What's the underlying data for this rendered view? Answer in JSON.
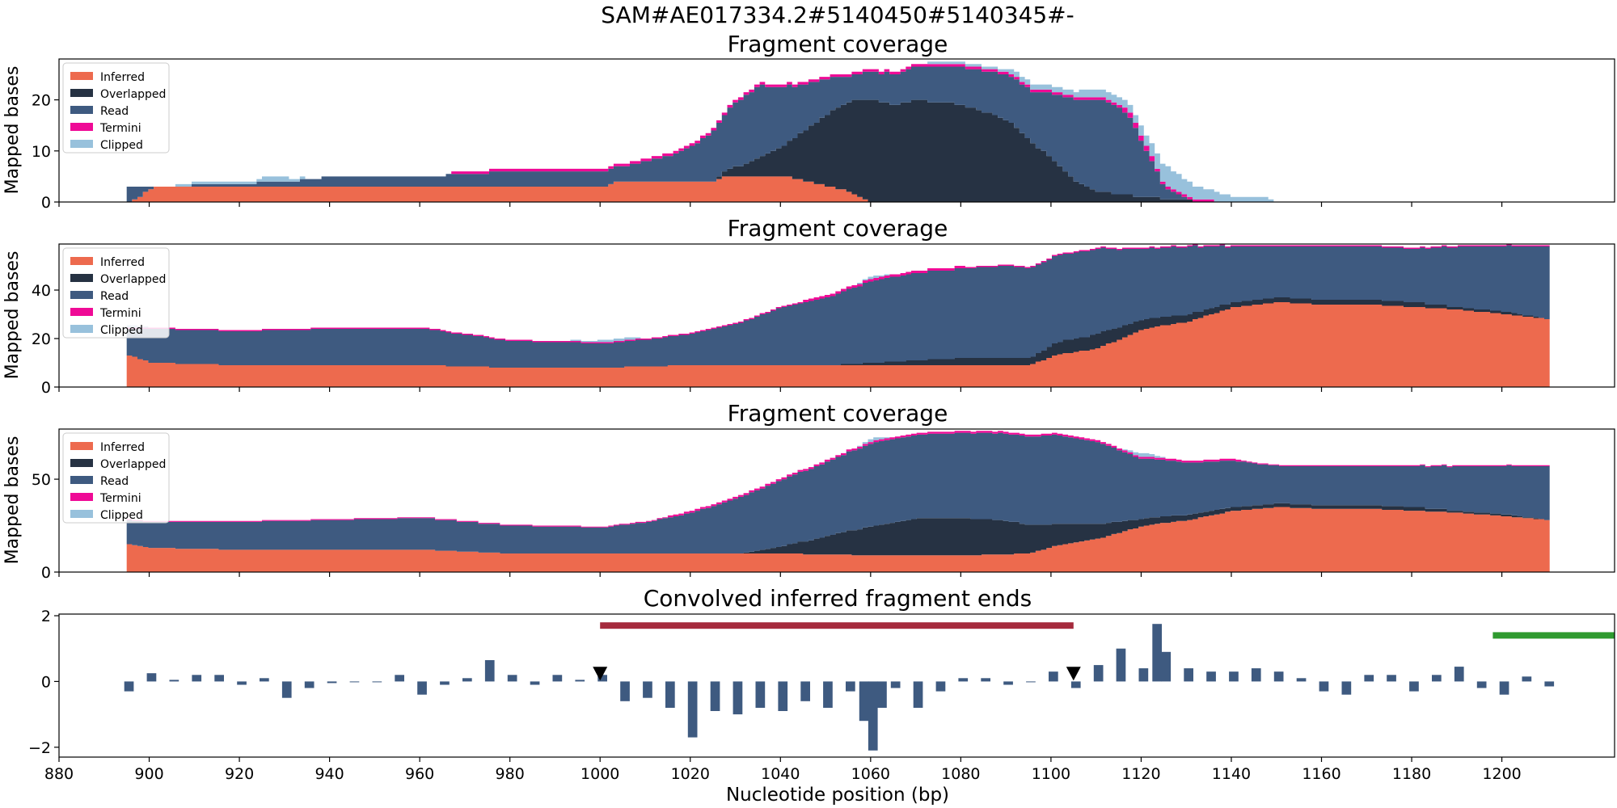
{
  "figure_title": "SAM#AE017334.2#5140450#5140345#-",
  "colors": {
    "Inferred": "#ed6a4e",
    "Overlapped": "#263243",
    "Read": "#3e5a80",
    "Termini": "#ef0a96",
    "Clipped": "#98c1dc",
    "bar_signal": "#3e5a80",
    "interval_red": "#a52a3d",
    "interval_green": "#2f9a2f",
    "marker": "#000000"
  },
  "chart_data": [
    {
      "type": "area",
      "title": "Fragment coverage",
      "ylabel": "Mapped bases",
      "xlim": [
        880,
        1225
      ],
      "ylim": [
        0,
        28
      ],
      "yticks": [
        0,
        10,
        20
      ],
      "legend": {
        "placement": "top-left",
        "entries": [
          "Inferred",
          "Overlapped",
          "Read",
          "Termini",
          "Clipped"
        ]
      },
      "series": [
        {
          "name": "Inferred",
          "x": [
            895,
            901,
            932,
            960,
            1000,
            1003,
            1025,
            1027,
            1034,
            1041,
            1050,
            1055,
            1060,
            1110,
            1135
          ],
          "values": [
            0,
            3,
            3,
            3,
            3,
            4,
            4,
            5,
            5,
            5,
            3,
            2,
            0,
            0,
            0
          ]
        },
        {
          "name": "Overlapped",
          "x": [
            895,
            1000,
            1025,
            1035,
            1040,
            1045,
            1050,
            1055,
            1060,
            1065,
            1070,
            1080,
            1090,
            1095,
            1100,
            1105,
            1110,
            1120,
            1135
          ],
          "values": [
            0,
            0,
            0,
            4,
            6,
            10,
            14,
            18,
            20,
            19,
            20,
            19,
            16,
            12,
            8,
            4,
            2,
            1,
            0
          ]
        },
        {
          "name": "Read",
          "x": [
            895,
            901,
            930,
            940,
            960,
            980,
            1000,
            1005,
            1010,
            1015,
            1020,
            1025,
            1030,
            1035,
            1045,
            1055,
            1065,
            1075,
            1085,
            1095,
            1105,
            1110,
            1115,
            1118,
            1121,
            1125,
            1130,
            1135
          ],
          "values": [
            3,
            0,
            1,
            2,
            2,
            3,
            3,
            3,
            4,
            5,
            7,
            10,
            13,
            14,
            9,
            5,
            6,
            7,
            8,
            10,
            16,
            18,
            17,
            14,
            8,
            2,
            0,
            0
          ]
        },
        {
          "name": "Termini",
          "x": [
            895,
            1010,
            1030,
            1050,
            1060,
            1070,
            1100,
            1110,
            1120,
            1130,
            1140
          ],
          "values": [
            0,
            0.4,
            0.6,
            0.5,
            0.6,
            0.5,
            0.6,
            0.7,
            0.8,
            0.6,
            0
          ]
        },
        {
          "name": "Clipped",
          "x": [
            895,
            930,
            935,
            1060,
            1080,
            1113,
            1118,
            1125,
            1130,
            1135,
            1140,
            1147,
            1150
          ],
          "values": [
            0,
            0.9,
            0,
            0,
            0.4,
            1.5,
            1.2,
            4,
            3,
            2,
            1,
            1,
            0
          ]
        }
      ]
    },
    {
      "type": "area",
      "title": "Fragment coverage",
      "ylabel": "Mapped bases",
      "xlim": [
        880,
        1225
      ],
      "ylim": [
        0,
        59
      ],
      "yticks": [
        0,
        20,
        40
      ],
      "legend": {
        "placement": "top-left",
        "entries": [
          "Inferred",
          "Overlapped",
          "Read",
          "Termini",
          "Clipped"
        ]
      },
      "series": [
        {
          "name": "Inferred",
          "x": [
            895,
            900,
            920,
            940,
            960,
            980,
            1000,
            1020,
            1040,
            1060,
            1080,
            1095,
            1100,
            1110,
            1120,
            1130,
            1140,
            1150,
            1160,
            1170,
            1180,
            1190,
            1200,
            1210
          ],
          "values": [
            13,
            10,
            9,
            9,
            9,
            8,
            8,
            9,
            9,
            9,
            9,
            9,
            13,
            16,
            24,
            27,
            33,
            35,
            34,
            34,
            33,
            32,
            30,
            28
          ]
        },
        {
          "name": "Overlapped",
          "x": [
            895,
            1050,
            1060,
            1070,
            1080,
            1090,
            1095,
            1100,
            1110,
            1120,
            1130,
            1140,
            1150,
            1160,
            1170,
            1180,
            1190,
            1200,
            1210
          ],
          "values": [
            0,
            0,
            1,
            2,
            3,
            3,
            3,
            5,
            6,
            4,
            3,
            2,
            2,
            2,
            2,
            2,
            1,
            1,
            0
          ]
        },
        {
          "name": "Read",
          "x": [
            895,
            900,
            920,
            940,
            960,
            980,
            1000,
            1010,
            1020,
            1030,
            1040,
            1050,
            1060,
            1070,
            1080,
            1090,
            1100,
            1110,
            1120,
            1130,
            1140,
            1150,
            1160,
            1170,
            1180,
            1190,
            1200,
            1210
          ],
          "values": [
            11,
            14,
            14,
            15,
            15,
            11,
            10,
            11,
            13,
            17,
            24,
            28,
            34,
            36,
            37,
            38,
            36,
            35,
            29,
            28,
            23,
            21,
            22,
            22,
            22,
            25,
            27,
            30
          ]
        },
        {
          "name": "Termini",
          "x": [
            895,
            930,
            990,
            1030,
            1060,
            1100,
            1150,
            1210
          ],
          "values": [
            0.6,
            0.6,
            0.4,
            0.7,
            0.8,
            0.7,
            0.6,
            0.5
          ]
        },
        {
          "name": "Clipped",
          "x": [
            895,
            900,
            990,
            1005,
            1010,
            1055,
            1060,
            1065,
            1210
          ],
          "values": [
            1,
            0,
            0,
            1.2,
            0,
            0,
            1,
            0,
            0
          ]
        }
      ]
    },
    {
      "type": "area",
      "title": "Fragment coverage",
      "ylabel": "Mapped bases",
      "xlim": [
        880,
        1225
      ],
      "ylim": [
        0,
        77
      ],
      "yticks": [
        0,
        50
      ],
      "legend": {
        "placement": "top-left",
        "entries": [
          "Inferred",
          "Overlapped",
          "Read",
          "Termini",
          "Clipped"
        ]
      },
      "series": [
        {
          "name": "Inferred",
          "x": [
            895,
            900,
            920,
            940,
            960,
            980,
            1000,
            1020,
            1040,
            1060,
            1080,
            1095,
            1100,
            1110,
            1120,
            1130,
            1140,
            1150,
            1160,
            1170,
            1180,
            1190,
            1200,
            1210
          ],
          "values": [
            15,
            13,
            12,
            12,
            12,
            10,
            10,
            10,
            10,
            9,
            9,
            10,
            14,
            18,
            25,
            28,
            33,
            35,
            34,
            34,
            33,
            32,
            30,
            28
          ]
        },
        {
          "name": "Overlapped",
          "x": [
            895,
            1030,
            1040,
            1050,
            1060,
            1070,
            1080,
            1090,
            1100,
            1110,
            1120,
            1130,
            1140,
            1150,
            1160,
            1170,
            1180,
            1190,
            1200,
            1210
          ],
          "values": [
            0,
            0,
            4,
            10,
            16,
            20,
            20,
            18,
            12,
            8,
            4,
            3,
            2,
            2,
            2,
            2,
            2,
            1,
            1,
            0
          ]
        },
        {
          "name": "Read",
          "x": [
            895,
            900,
            920,
            940,
            960,
            980,
            1000,
            1010,
            1020,
            1030,
            1040,
            1050,
            1060,
            1070,
            1080,
            1090,
            1100,
            1110,
            1120,
            1130,
            1140,
            1150,
            1160,
            1170,
            1180,
            1190,
            1200,
            1210
          ],
          "values": [
            13,
            14,
            15,
            16,
            17,
            15,
            14,
            17,
            22,
            30,
            36,
            40,
            45,
            45,
            46,
            47,
            48,
            44,
            32,
            28,
            25,
            20,
            21,
            21,
            22,
            24,
            26,
            29
          ]
        },
        {
          "name": "Termini",
          "x": [
            895,
            930,
            990,
            1030,
            1060,
            1100,
            1150,
            1210
          ],
          "values": [
            0.7,
            0.7,
            0.5,
            0.9,
            1,
            1,
            0.7,
            0.6
          ]
        },
        {
          "name": "Clipped",
          "x": [
            895,
            1055,
            1060,
            1065,
            1115,
            1120,
            1125,
            1210
          ],
          "values": [
            0,
            0,
            1.5,
            0,
            0,
            2,
            0,
            0
          ]
        }
      ]
    },
    {
      "type": "bar",
      "title": "Convolved inferred fragment ends",
      "xlabel": "Nucleotide position (bp)",
      "xlim": [
        880,
        1225
      ],
      "ylim": [
        -2.3,
        2.05
      ],
      "xticks": [
        880,
        900,
        920,
        940,
        960,
        980,
        1000,
        1020,
        1040,
        1060,
        1080,
        1100,
        1120,
        1140,
        1160,
        1180,
        1200
      ],
      "yticks": [
        -2,
        0,
        2
      ],
      "x": [
        895,
        900,
        905,
        910,
        915,
        920,
        925,
        930,
        935,
        940,
        945,
        950,
        955,
        960,
        965,
        970,
        975,
        980,
        985,
        990,
        995,
        1000,
        1005,
        1010,
        1015,
        1020,
        1025,
        1030,
        1035,
        1040,
        1045,
        1050,
        1055,
        1058,
        1060,
        1062,
        1065,
        1070,
        1075,
        1080,
        1085,
        1090,
        1095,
        1100,
        1105,
        1110,
        1115,
        1120,
        1123,
        1125,
        1130,
        1135,
        1140,
        1145,
        1150,
        1155,
        1160,
        1165,
        1170,
        1175,
        1180,
        1185,
        1190,
        1195,
        1200,
        1205,
        1210
      ],
      "values": [
        -0.3,
        0.25,
        0.05,
        0.2,
        0.2,
        -0.1,
        0.1,
        -0.5,
        -0.2,
        -0.05,
        0,
        0,
        0.2,
        -0.4,
        -0.1,
        0.1,
        0.65,
        0.2,
        -0.1,
        0.2,
        0.05,
        0.2,
        -0.6,
        -0.5,
        -0.8,
        -1.7,
        -0.9,
        -1.0,
        -0.8,
        -0.9,
        -0.6,
        -0.8,
        -0.3,
        -1.2,
        -2.1,
        -0.8,
        -0.2,
        -0.8,
        -0.3,
        0.1,
        0.1,
        -0.1,
        0,
        0.3,
        -0.2,
        0.5,
        1.0,
        0.4,
        1.75,
        0.9,
        0.4,
        0.3,
        0.3,
        0.4,
        0.3,
        0.1,
        -0.3,
        -0.4,
        0.2,
        0.2,
        -0.3,
        0.2,
        0.45,
        -0.2,
        -0.4,
        0.15,
        -0.15
      ],
      "annotations": [
        {
          "kind": "interval",
          "color": "red",
          "x": [
            1000,
            1105
          ],
          "y": 1.7
        },
        {
          "kind": "interval",
          "color": "green",
          "x": [
            1198,
            1225
          ],
          "y": 1.4
        },
        {
          "kind": "marker",
          "shape": "triangle-down",
          "x": 1000,
          "y": 0.2
        },
        {
          "kind": "marker",
          "shape": "triangle-down",
          "x": 1105,
          "y": 0.2
        }
      ]
    }
  ]
}
